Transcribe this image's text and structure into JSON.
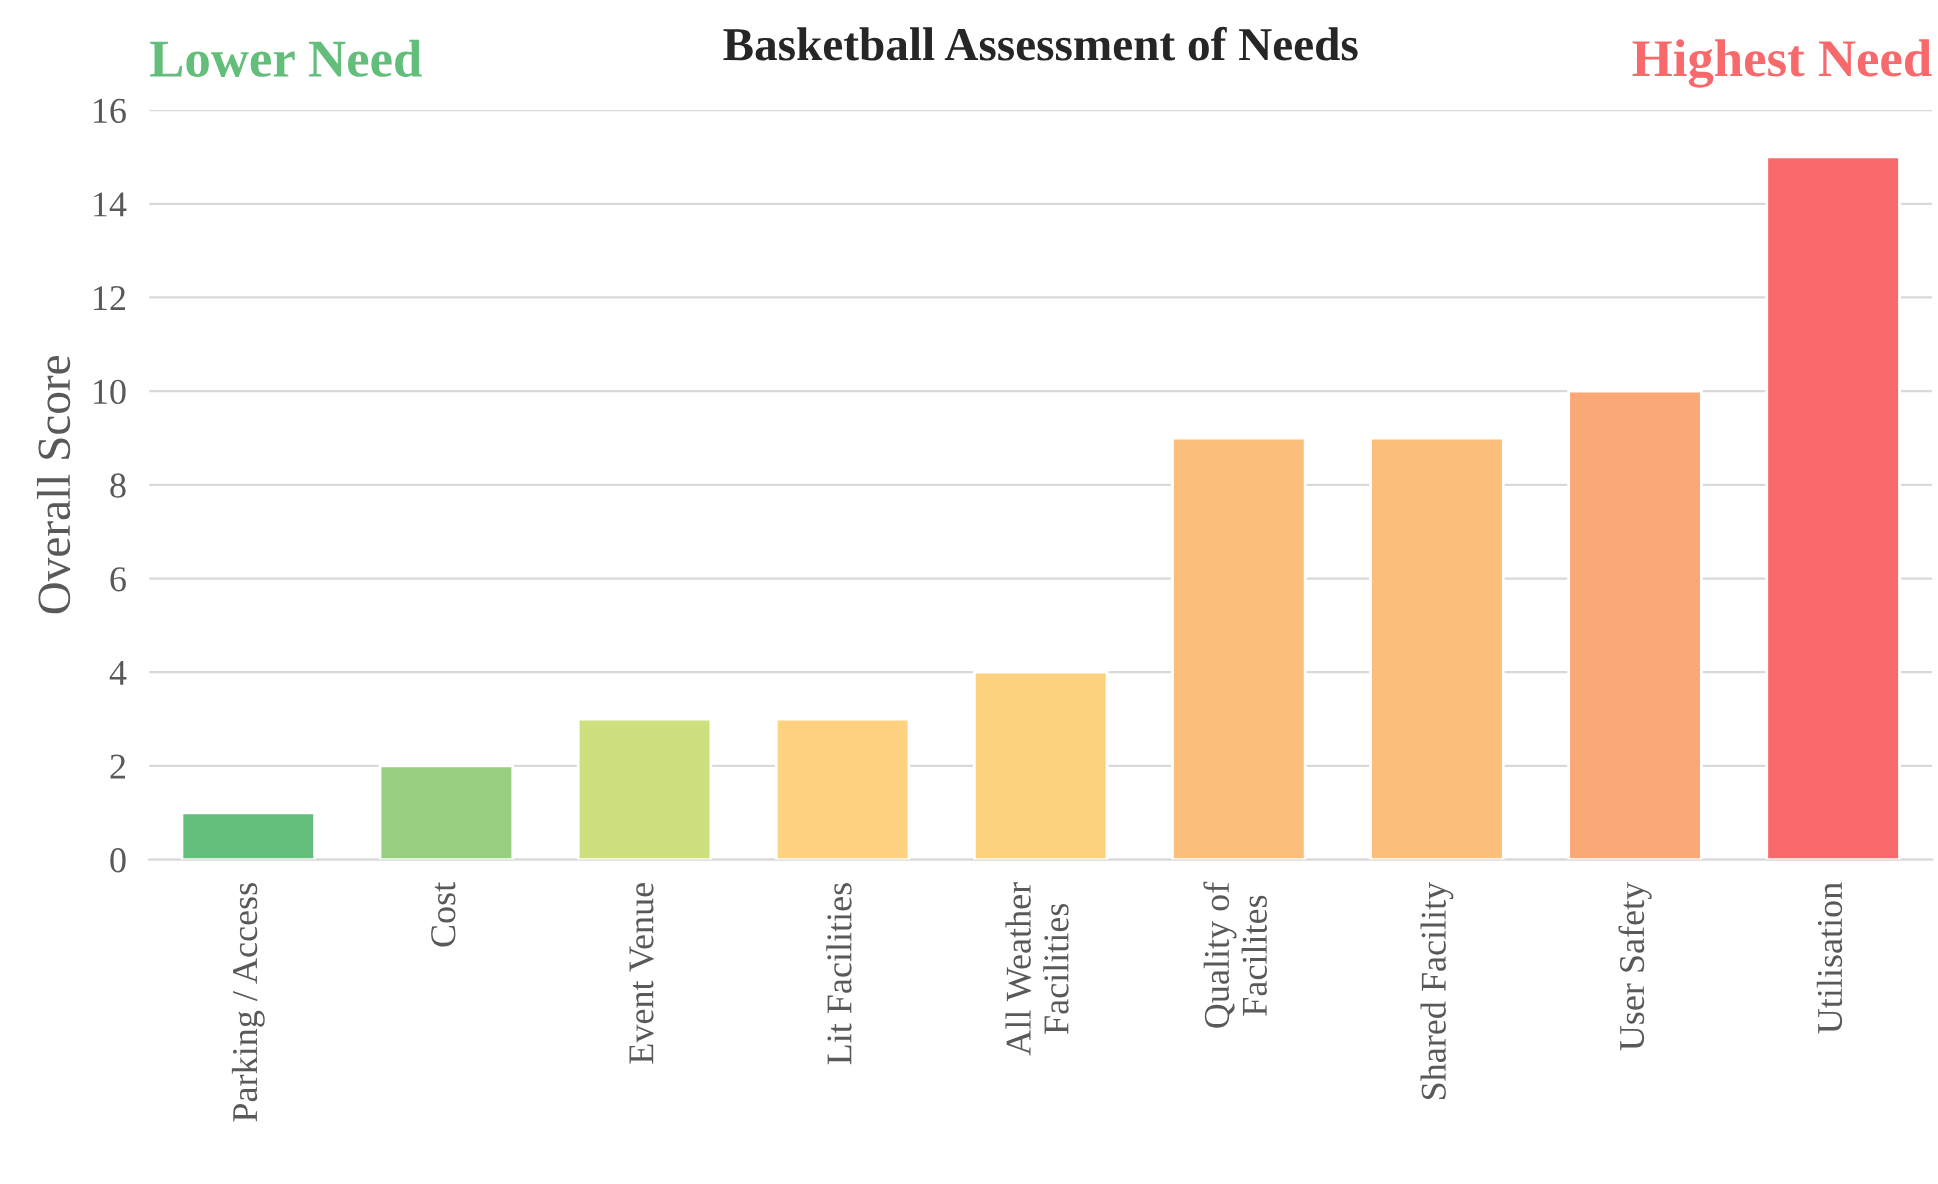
{
  "chart_data": {
    "type": "bar",
    "title": "Basketball Assessment of Needs",
    "ylabel": "Overall Score",
    "annotations": [
      "Lower Need",
      "Highest Need"
    ],
    "categories": [
      "Parking / Access",
      "Cost",
      "Event Venue",
      "Lit Facilities",
      "All Weather\nFacilities",
      "Quality of\nFacilites",
      "Shared Facility",
      "User Safety",
      "Utilisation"
    ],
    "values": [
      1,
      2,
      3,
      3,
      4,
      9,
      9,
      10,
      15
    ],
    "colors": [
      "#63be7b",
      "#98ce7f",
      "#cde07f",
      "#fed280",
      "#fdd27f",
      "#fbbe7b",
      "#fbbe7b",
      "#faa875",
      "#f8696b"
    ],
    "ylim": [
      0,
      16
    ],
    "yticks": [
      0,
      2,
      4,
      6,
      8,
      10,
      12,
      14,
      16
    ],
    "grid": "y"
  }
}
